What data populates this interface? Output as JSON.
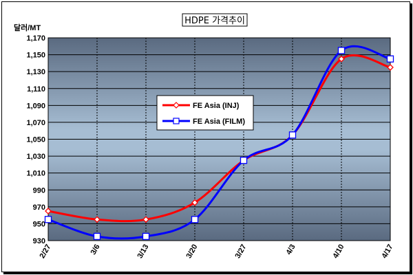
{
  "chart_data": {
    "type": "line",
    "title": "HDPE 가격추이",
    "ylabel": "달러/MT",
    "xlabel": "",
    "categories": [
      "2/27",
      "3/6",
      "3/13",
      "3/20",
      "3/27",
      "4/3",
      "4/10",
      "4/17"
    ],
    "ylim": [
      930,
      1170
    ],
    "yticks": [
      930,
      950,
      970,
      990,
      1010,
      1030,
      1050,
      1070,
      1090,
      1110,
      1130,
      1150,
      1170
    ],
    "ytick_labels": [
      "930",
      "950",
      "970",
      "990",
      "1,010",
      "1,030",
      "1,050",
      "1,070",
      "1,090",
      "1,110",
      "1,130",
      "1,150",
      "1,170"
    ],
    "grid": true,
    "legend_position": "center-left",
    "series": [
      {
        "name": "FE Asia (INJ)",
        "color": "#ff0000",
        "marker": "diamond",
        "values": [
          965,
          955,
          955,
          975,
          1025,
          1055,
          1145,
          1135
        ]
      },
      {
        "name": "FE Asia (FILM)",
        "color": "#0000ff",
        "marker": "square",
        "values": [
          955,
          935,
          935,
          955,
          1025,
          1055,
          1155,
          1145
        ]
      }
    ]
  }
}
